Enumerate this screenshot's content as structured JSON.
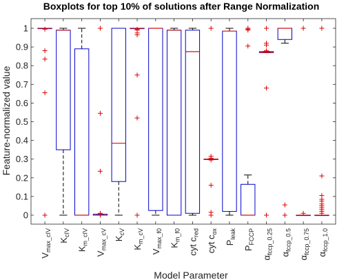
{
  "chart_data": {
    "type": "boxplot",
    "title": "Boxplots for top 10% of solutions after Range Normalization",
    "xlabel": "Model Parameter",
    "ylabel": "Feature-normalized value",
    "ylim": [
      0,
      1
    ],
    "yticks": [
      "0",
      "0.1",
      "0.2",
      "0.3",
      "0.4",
      "0.5",
      "0.6",
      "0.7",
      "0.8",
      "0.9",
      "1"
    ],
    "grid": false,
    "box_color": "#0000cc",
    "median_color": "#d01010",
    "outlier_color": "#dd0000",
    "whisker_color": "#000000",
    "categories": [
      {
        "label": "V",
        "sub": "max_cIV",
        "q1": 1.0,
        "median": 1.0,
        "q3": 1.0,
        "wlo": 1.0,
        "whi": 1.0,
        "outliers": [
          0.995,
          0.88,
          0.835,
          0.655,
          0.0
        ]
      },
      {
        "label": "K",
        "sub": "cIV",
        "q1": 0.35,
        "median": 0.99,
        "q3": 0.99,
        "wlo": 0.0,
        "whi": 1.0,
        "outliers": []
      },
      {
        "label": "K",
        "sub": "m_cIV",
        "q1": 0.0,
        "median": 0.0,
        "q3": 0.89,
        "wlo": 0.0,
        "whi": 1.0,
        "outliers": []
      },
      {
        "label": "V",
        "sub": "max_cV",
        "q1": 0.0,
        "median": 0.0,
        "q3": 0.005,
        "wlo": 0.0,
        "whi": 0.005,
        "outliers": [
          1.0,
          0.545,
          0.235,
          0.01,
          0.0
        ]
      },
      {
        "label": "K",
        "sub": "cV",
        "q1": 0.18,
        "median": 0.385,
        "q3": 1.0,
        "wlo": 0.0,
        "whi": 1.0,
        "outliers": []
      },
      {
        "label": "K",
        "sub": "m_cV",
        "q1": 1.0,
        "median": 1.0,
        "q3": 1.0,
        "wlo": 1.0,
        "whi": 1.0,
        "outliers": [
          0.995,
          0.99,
          0.975,
          0.965,
          0.75,
          0.52,
          0.0
        ]
      },
      {
        "label": "V",
        "sub": "max_f0",
        "q1": 0.025,
        "median": 1.0,
        "q3": 1.0,
        "wlo": 0.0,
        "whi": 1.0,
        "outliers": []
      },
      {
        "label": "K",
        "sub": "m_f0",
        "q1": 0.0,
        "median": 0.99,
        "q3": 0.99,
        "wlo": 0.0,
        "whi": 1.0,
        "outliers": []
      },
      {
        "label": "cyt c",
        "sub": "red",
        "q1": 0.01,
        "median": 0.875,
        "q3": 0.99,
        "wlo": 0.0,
        "whi": 1.0,
        "outliers": []
      },
      {
        "label": "cyt c",
        "sub": "ox",
        "q1": 0.3,
        "median": 0.3,
        "q3": 0.3,
        "wlo": 0.3,
        "whi": 0.3,
        "outliers": [
          1.0,
          0.315,
          0.305,
          0.295,
          0.16,
          0.015,
          0.0
        ]
      },
      {
        "label": "P",
        "sub": "leak",
        "q1": 0.02,
        "median": 0.985,
        "q3": 0.985,
        "wlo": 0.0,
        "whi": 1.0,
        "outliers": []
      },
      {
        "label": "P",
        "sub": "FCCP",
        "q1": 0.0,
        "median": 0.0,
        "q3": 0.165,
        "wlo": 0.0,
        "whi": 0.215,
        "outliers": [
          1.0,
          0.995,
          0.99,
          0.905
        ]
      },
      {
        "label": "α",
        "sub": "fccp_0.25",
        "q1": 0.87,
        "median": 0.87,
        "q3": 0.875,
        "wlo": 0.87,
        "whi": 0.875,
        "outliers": [
          1.0,
          0.92,
          0.91,
          0.88,
          0.68,
          0.0
        ]
      },
      {
        "label": "α",
        "sub": "fccp_0.5",
        "q1": 0.94,
        "median": 1.0,
        "q3": 1.0,
        "wlo": 0.92,
        "whi": 1.0,
        "outliers": [
          0.055,
          0.0
        ]
      },
      {
        "label": "α",
        "sub": "fccp_0.75",
        "q1": 0.0,
        "median": 0.0,
        "q3": 0.0,
        "wlo": 0.0,
        "whi": 0.0,
        "outliers": [
          1.0,
          0.01
        ]
      },
      {
        "label": "α",
        "sub": "fccp_1.0",
        "q1": 0.0,
        "median": 0.0,
        "q3": 0.0,
        "wlo": 0.0,
        "whi": 0.0,
        "outliers": [
          1.0,
          0.21,
          0.105,
          0.085,
          0.075,
          0.06,
          0.05,
          0.04,
          0.03,
          0.02,
          0.01
        ]
      }
    ]
  }
}
